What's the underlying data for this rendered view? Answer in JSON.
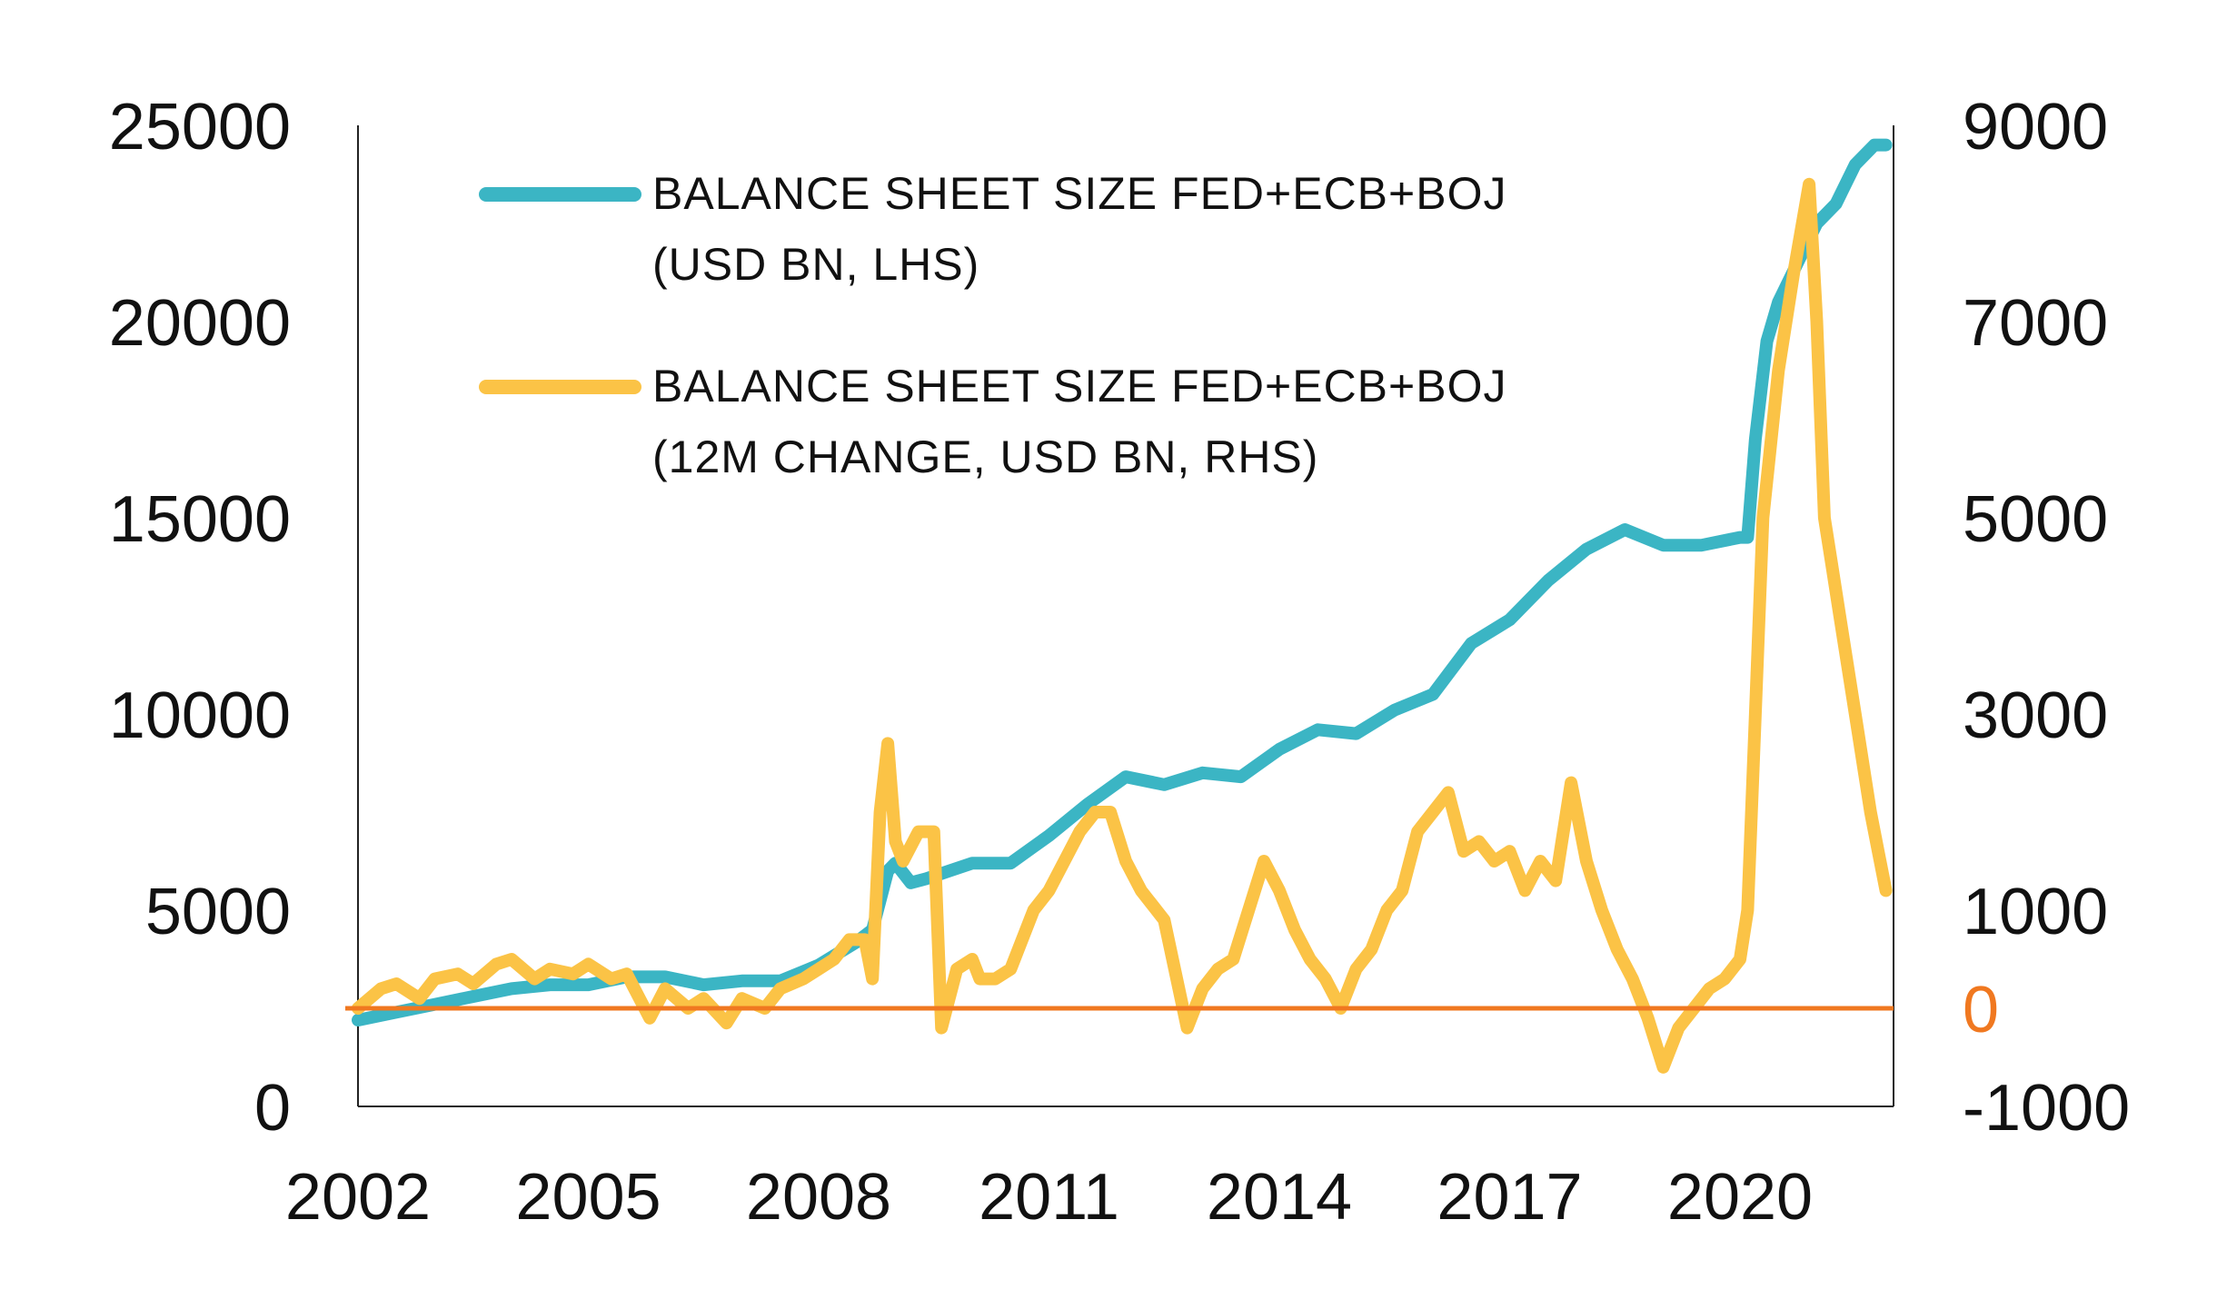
{
  "chart_data": {
    "type": "line",
    "title": "",
    "xlabel": "",
    "ylabel": "",
    "x_ticks": [
      "2002",
      "2005",
      "2008",
      "2011",
      "2014",
      "2017",
      "2020"
    ],
    "x_range": [
      2002,
      2022
    ],
    "y_left": {
      "ticks": [
        "0",
        "5000",
        "10000",
        "15000",
        "20000",
        "25000"
      ],
      "range": [
        0,
        25000
      ]
    },
    "y_right": {
      "ticks": [
        "-1000",
        "1000",
        "3000",
        "5000",
        "7000",
        "9000"
      ],
      "range": [
        -1000,
        9000
      ]
    },
    "zero_line": {
      "label": "0",
      "value": 0,
      "axis": "right",
      "color": "#f07820"
    },
    "legend": {
      "placement": "top-left",
      "items": [
        {
          "line1": "BALANCE SHEET SIZE FED+ECB+BOJ",
          "line2": "(USD BN, LHS)",
          "color": "#3bb5c4"
        },
        {
          "line1": "BALANCE SHEET SIZE FED+ECB+BOJ",
          "line2": "(12M CHANGE, USD BN, RHS)",
          "color": "#fbc346"
        }
      ]
    },
    "series": [
      {
        "name": "BALANCE SHEET SIZE FED+ECB+BOJ (USD BN, LHS)",
        "axis": "left",
        "color": "#3bb5c4",
        "x": [
          2002.0,
          2002.5,
          2003.0,
          2003.5,
          2004.0,
          2004.5,
          2005.0,
          2005.5,
          2006.0,
          2006.5,
          2007.0,
          2007.5,
          2008.0,
          2008.5,
          2008.7,
          2008.9,
          2009.0,
          2009.2,
          2009.4,
          2009.7,
          2010.0,
          2010.5,
          2011.0,
          2011.5,
          2012.0,
          2012.5,
          2013.0,
          2013.5,
          2014.0,
          2014.5,
          2015.0,
          2015.5,
          2016.0,
          2016.5,
          2017.0,
          2017.5,
          2018.0,
          2018.5,
          2019.0,
          2019.5,
          2020.0,
          2020.1,
          2020.2,
          2020.35,
          2020.5,
          2020.75,
          2021.0,
          2021.25,
          2021.5,
          2021.75,
          2021.9
        ],
        "values": [
          2200,
          2400,
          2600,
          2800,
          3000,
          3100,
          3100,
          3300,
          3300,
          3100,
          3200,
          3200,
          3600,
          4200,
          4500,
          6000,
          6200,
          5700,
          5800,
          6000,
          6200,
          6200,
          6900,
          7700,
          8400,
          8200,
          8500,
          8400,
          9100,
          9600,
          9500,
          10100,
          10500,
          11800,
          12400,
          13400,
          14200,
          14700,
          14300,
          14300,
          14500,
          14500,
          17000,
          19500,
          20500,
          21500,
          22500,
          23000,
          24000,
          24500,
          24500
        ]
      },
      {
        "name": "BALANCE SHEET SIZE FED+ECB+BOJ (12M CHANGE, USD BN, RHS)",
        "axis": "right",
        "color": "#fbc346",
        "x": [
          2002.0,
          2002.3,
          2002.5,
          2002.8,
          2003.0,
          2003.3,
          2003.5,
          2003.8,
          2004.0,
          2004.3,
          2004.5,
          2004.8,
          2005.0,
          2005.3,
          2005.5,
          2005.8,
          2006.0,
          2006.3,
          2006.5,
          2006.8,
          2007.0,
          2007.3,
          2007.5,
          2007.8,
          2008.0,
          2008.2,
          2008.4,
          2008.6,
          2008.7,
          2008.8,
          2008.9,
          2009.0,
          2009.1,
          2009.3,
          2009.5,
          2009.6,
          2009.8,
          2010.0,
          2010.1,
          2010.3,
          2010.5,
          2010.8,
          2011.0,
          2011.2,
          2011.4,
          2011.6,
          2011.8,
          2012.0,
          2012.2,
          2012.5,
          2012.8,
          2013.0,
          2013.2,
          2013.4,
          2013.6,
          2013.8,
          2014.0,
          2014.2,
          2014.4,
          2014.6,
          2014.8,
          2015.0,
          2015.2,
          2015.4,
          2015.6,
          2015.8,
          2016.0,
          2016.2,
          2016.4,
          2016.6,
          2016.8,
          2017.0,
          2017.2,
          2017.4,
          2017.6,
          2017.8,
          2018.0,
          2018.2,
          2018.4,
          2018.6,
          2018.8,
          2019.0,
          2019.2,
          2019.4,
          2019.6,
          2019.8,
          2020.0,
          2020.1,
          2020.2,
          2020.3,
          2020.5,
          2020.7,
          2020.9,
          2021.0,
          2021.1,
          2021.2,
          2021.3,
          2021.5,
          2021.7,
          2021.8,
          2021.9
        ],
        "values": [
          0,
          200,
          250,
          100,
          300,
          350,
          250,
          450,
          500,
          300,
          400,
          350,
          450,
          300,
          350,
          -100,
          200,
          0,
          100,
          -150,
          100,
          0,
          200,
          300,
          400,
          500,
          700,
          700,
          300,
          2000,
          2700,
          1700,
          1500,
          1800,
          1800,
          -200,
          400,
          500,
          300,
          300,
          400,
          1000,
          1200,
          1500,
          1800,
          2000,
          2000,
          1500,
          1200,
          900,
          -200,
          200,
          400,
          500,
          1000,
          1500,
          1200,
          800,
          500,
          300,
          0,
          400,
          600,
          1000,
          1200,
          1800,
          2000,
          2200,
          1600,
          1700,
          1500,
          1600,
          1200,
          1500,
          1300,
          2300,
          1500,
          1000,
          600,
          300,
          -100,
          -600,
          -200,
          0,
          200,
          300,
          500,
          1000,
          3000,
          5000,
          6500,
          7500,
          8400,
          7000,
          5000,
          4500,
          4000,
          3000,
          2000,
          1600,
          1200
        ]
      }
    ]
  }
}
